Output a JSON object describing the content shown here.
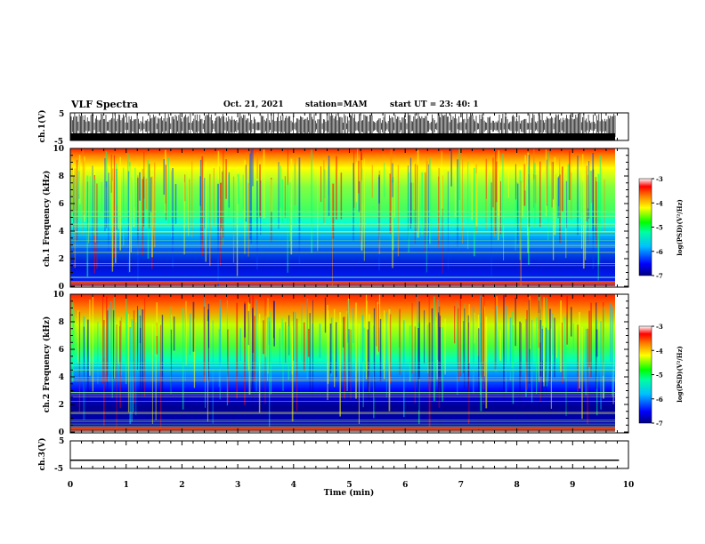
{
  "header": {
    "title": "VLF Spectra",
    "date": "Oct. 21, 2021",
    "station": "station=MAM",
    "start": "start  UT  =   23: 40: 1"
  },
  "chart_data": [
    {
      "type": "line",
      "panel": "ch1-waveform",
      "ylabel": "ch.1(V)",
      "ylim": [
        -5,
        5
      ],
      "yticks": [
        "5",
        "-5"
      ],
      "xlim": [
        0,
        10
      ]
    },
    {
      "type": "heatmap",
      "panel": "ch1-spectrogram",
      "ylabel": "ch.1 Frequency (kHz)",
      "ylim": [
        0,
        10
      ],
      "yticks": [
        "0",
        "2",
        "4",
        "6",
        "8",
        "10"
      ],
      "xlim": [
        0,
        9.83
      ],
      "colorbar": {
        "label": "log(PSD)(V²/Hz)",
        "range": [
          -7,
          -3
        ],
        "ticks": [
          "-3",
          "-4",
          "-5",
          "-6",
          "-7"
        ]
      }
    },
    {
      "type": "heatmap",
      "panel": "ch2-spectrogram",
      "ylabel": "ch.2 Frequency (kHz)",
      "ylim": [
        0,
        10
      ],
      "yticks": [
        "0",
        "2",
        "4",
        "6",
        "8",
        "10"
      ],
      "xlim": [
        0,
        9.83
      ],
      "colorbar": {
        "label": "log(PSD)(V²/Hz)",
        "range": [
          -7,
          -3
        ],
        "ticks": [
          "-3",
          "-4",
          "-5",
          "-6",
          "-7"
        ]
      }
    },
    {
      "type": "line",
      "panel": "ch3-waveform",
      "ylabel": "ch.3(V)",
      "ylim": [
        -5,
        5
      ],
      "yticks": [
        "5",
        "-5"
      ],
      "x": [
        0,
        9.83
      ],
      "y": [
        -2,
        -2
      ],
      "xlabel": "Time (min)",
      "xlim": [
        0,
        10
      ],
      "xticks": [
        "0",
        "1",
        "2",
        "3",
        "4",
        "5",
        "6",
        "7",
        "8",
        "9",
        "10"
      ]
    }
  ],
  "colors": {
    "scale": [
      "#000080",
      "#0000ff",
      "#00a0ff",
      "#00ffff",
      "#00ff00",
      "#ffff00",
      "#ff8000",
      "#ff0000",
      "#ffffff"
    ]
  }
}
